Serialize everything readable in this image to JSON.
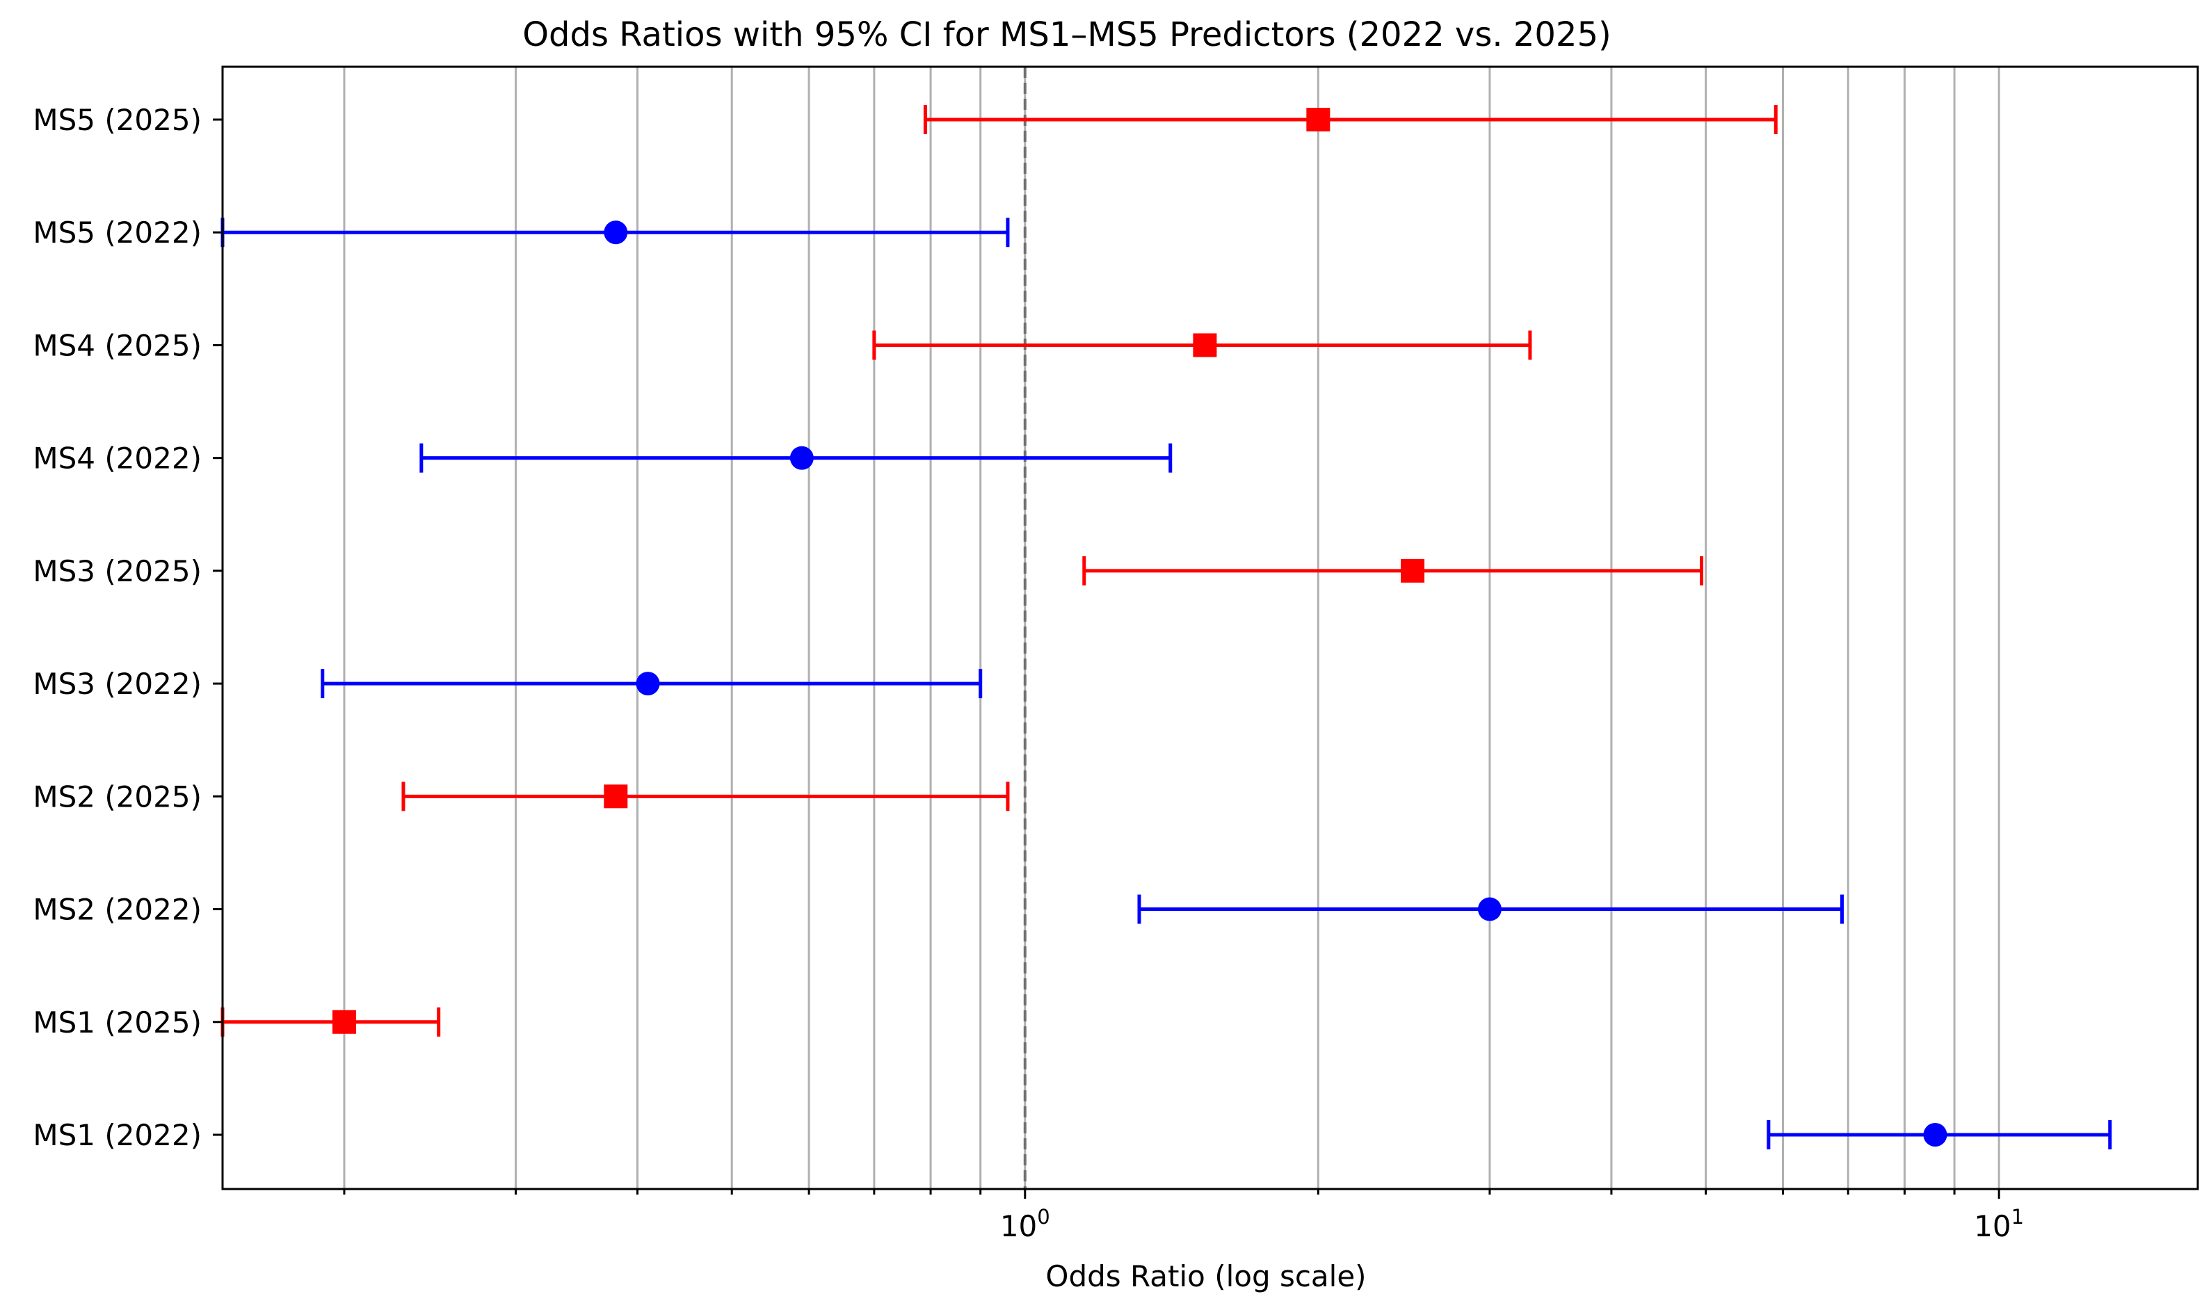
{
  "chart_data": {
    "type": "forest",
    "title": "Odds Ratios with 95% CI for MS1–MS5 Predictors (2022 vs. 2025)",
    "xlabel": "Odds Ratio (log scale)",
    "ylabel": "",
    "x_scale": "log",
    "xlim": [
      0.15,
      16
    ],
    "x_ticks": [
      {
        "value": 1,
        "label": "10",
        "exp": "0"
      },
      {
        "value": 10,
        "label": "10",
        "exp": "1"
      }
    ],
    "reference_line": 1,
    "grid": "x-major-and-minor",
    "colors": {
      "2022": "#0000ff",
      "2025": "#ff0000"
    },
    "markers": {
      "2022": "circle",
      "2025": "square"
    },
    "rows": [
      {
        "label": "MS1 (2022)",
        "year": "2022",
        "or": 8.6,
        "ci_low": 5.8,
        "ci_high": 13.0
      },
      {
        "label": "MS1 (2025)",
        "year": "2025",
        "or": 0.2,
        "ci_low": 0.15,
        "ci_high": 0.25
      },
      {
        "label": "MS2 (2022)",
        "year": "2022",
        "or": 3.0,
        "ci_low": 1.31,
        "ci_high": 6.9
      },
      {
        "label": "MS2 (2025)",
        "year": "2025",
        "or": 0.38,
        "ci_low": 0.23,
        "ci_high": 0.96
      },
      {
        "label": "MS3 (2022)",
        "year": "2022",
        "or": 0.41,
        "ci_low": 0.19,
        "ci_high": 0.9
      },
      {
        "label": "MS3 (2025)",
        "year": "2025",
        "or": 2.5,
        "ci_low": 1.15,
        "ci_high": 4.95
      },
      {
        "label": "MS4 (2022)",
        "year": "2022",
        "or": 0.59,
        "ci_low": 0.24,
        "ci_high": 1.41
      },
      {
        "label": "MS4 (2025)",
        "year": "2025",
        "or": 1.53,
        "ci_low": 0.7,
        "ci_high": 3.3
      },
      {
        "label": "MS5 (2022)",
        "year": "2022",
        "or": 0.38,
        "ci_low": 0.15,
        "ci_high": 0.96
      },
      {
        "label": "MS5 (2025)",
        "year": "2025",
        "or": 2.0,
        "ci_low": 0.79,
        "ci_high": 5.9
      }
    ]
  }
}
